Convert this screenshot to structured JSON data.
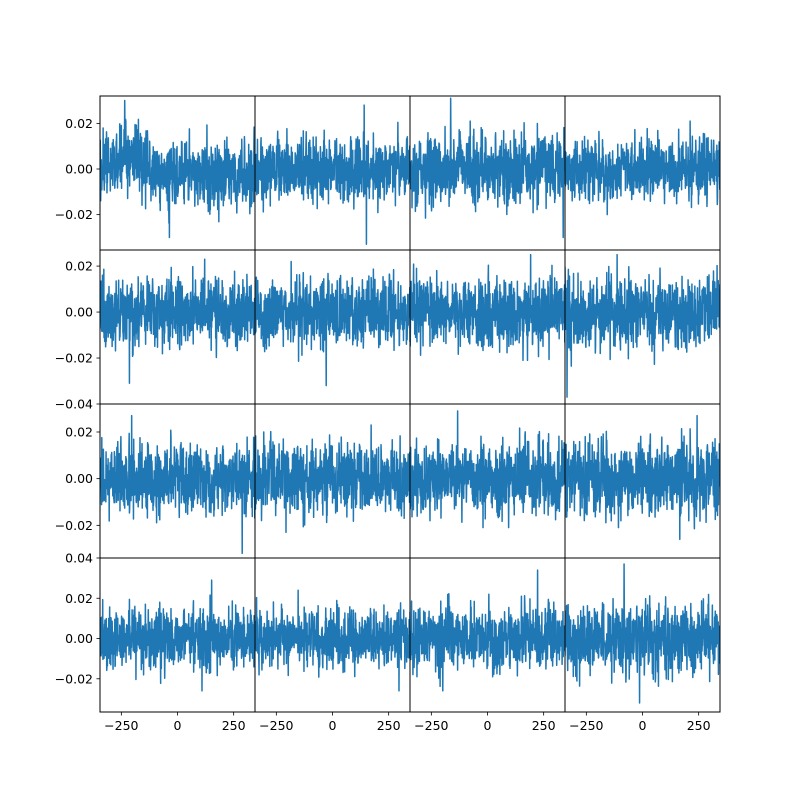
{
  "figure": {
    "background": "#ffffff",
    "line_color": "#1f77b4",
    "axis_color": "#000000"
  },
  "chart_data": {
    "type": "line",
    "layout_grid": "4x4 subplots, shared x axis per column, shared y axis per row",
    "x_range": [
      -345,
      345
    ],
    "x_ticks": [
      -250,
      0,
      250
    ],
    "x_tick_labels": [
      "−250",
      "0",
      "250"
    ],
    "rows": [
      {
        "ylim": [
          -0.0355,
          0.032
        ],
        "y_ticks": [
          -0.02,
          0,
          0.02
        ],
        "y_tick_labels": [
          "−0.02",
          "0.00",
          "0.02"
        ]
      },
      {
        "ylim": [
          -0.04,
          0.027
        ],
        "y_ticks": [
          -0.04,
          -0.02,
          0,
          0.02
        ],
        "y_tick_labels": [
          "−0.04",
          "−0.02",
          "0.00",
          "0.02"
        ]
      },
      {
        "ylim": [
          -0.034,
          0.032
        ],
        "y_ticks": [
          -0.02,
          0,
          0.02
        ],
        "y_tick_labels": [
          "−0.02",
          "0.00",
          "0.02"
        ]
      },
      {
        "ylim": [
          -0.0365,
          0.04
        ],
        "y_ticks": [
          -0.02,
          0,
          0.02,
          0.04
        ],
        "y_tick_labels": [
          "−0.02",
          "0.00",
          "0.02",
          "0.04"
        ]
      }
    ],
    "grid": false,
    "legend": "none",
    "panels": [
      {
        "row": 0,
        "col": 0,
        "seed": 11,
        "sigma": 0.0078,
        "trend": "left-high",
        "min": -0.03,
        "max": 0.03
      },
      {
        "row": 0,
        "col": 1,
        "seed": 12,
        "sigma": 0.0075,
        "min": -0.033,
        "max": 0.028
      },
      {
        "row": 0,
        "col": 2,
        "seed": 13,
        "sigma": 0.0078,
        "min": -0.03,
        "max": 0.031
      },
      {
        "row": 0,
        "col": 3,
        "seed": 14,
        "sigma": 0.0065,
        "min": -0.02,
        "max": 0.021
      },
      {
        "row": 1,
        "col": 0,
        "seed": 21,
        "sigma": 0.0075,
        "min": -0.031,
        "max": 0.023
      },
      {
        "row": 1,
        "col": 1,
        "seed": 22,
        "sigma": 0.0075,
        "min": -0.032,
        "max": 0.022
      },
      {
        "row": 1,
        "col": 2,
        "seed": 23,
        "sigma": 0.008,
        "min": -0.021,
        "max": 0.025
      },
      {
        "row": 1,
        "col": 3,
        "seed": 24,
        "sigma": 0.008,
        "min": -0.037,
        "max": 0.025
      },
      {
        "row": 2,
        "col": 0,
        "seed": 31,
        "sigma": 0.0075,
        "min": -0.032,
        "max": 0.027
      },
      {
        "row": 2,
        "col": 1,
        "seed": 32,
        "sigma": 0.0075,
        "min": -0.023,
        "max": 0.023
      },
      {
        "row": 2,
        "col": 2,
        "seed": 33,
        "sigma": 0.008,
        "min": -0.021,
        "max": 0.029
      },
      {
        "row": 2,
        "col": 3,
        "seed": 34,
        "sigma": 0.008,
        "min": -0.026,
        "max": 0.027
      },
      {
        "row": 3,
        "col": 0,
        "seed": 41,
        "sigma": 0.0075,
        "min": -0.026,
        "max": 0.029
      },
      {
        "row": 3,
        "col": 1,
        "seed": 42,
        "sigma": 0.0075,
        "min": -0.026,
        "max": 0.024
      },
      {
        "row": 3,
        "col": 2,
        "seed": 43,
        "sigma": 0.008,
        "min": -0.026,
        "max": 0.034
      },
      {
        "row": 3,
        "col": 3,
        "seed": 44,
        "sigma": 0.0085,
        "min": -0.032,
        "max": 0.037
      }
    ]
  }
}
